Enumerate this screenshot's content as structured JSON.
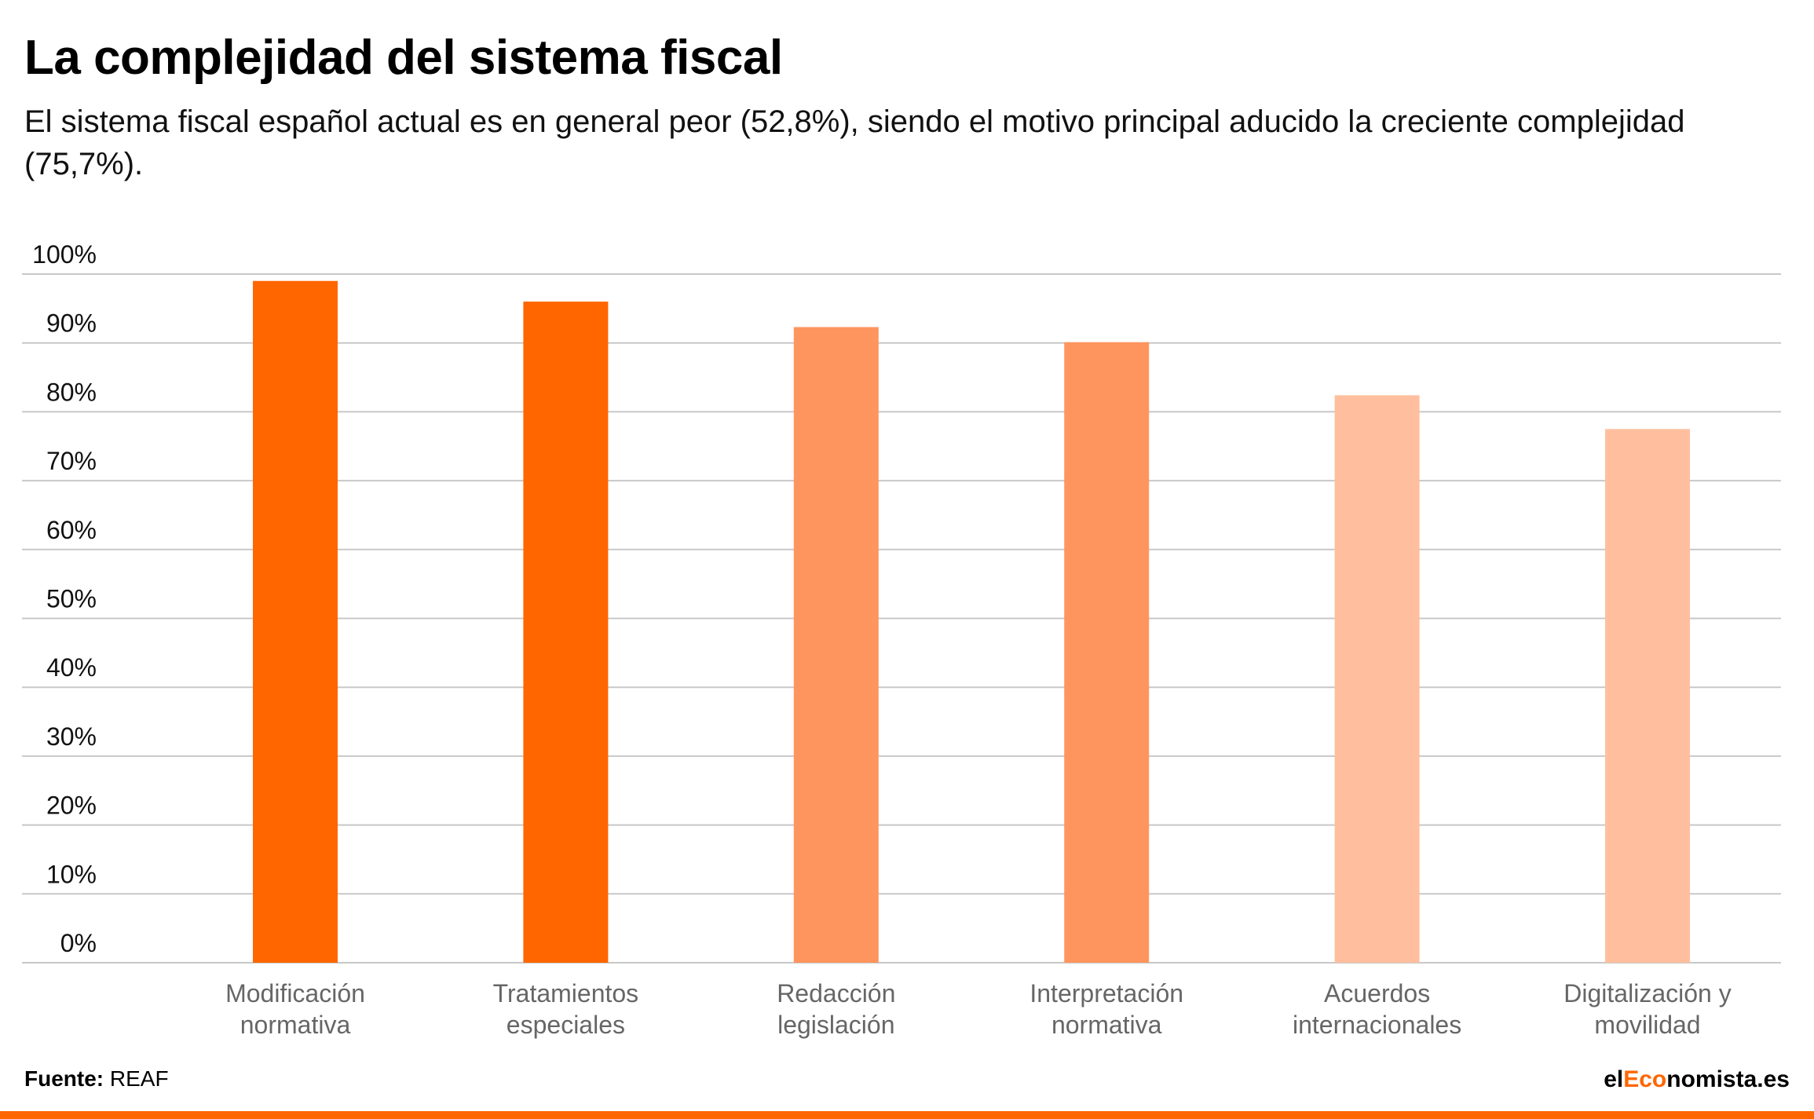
{
  "title": "La complejidad del sistema fiscal",
  "subtitle": "El sistema fiscal español actual es en general peor (52,8%), siendo el motivo principal aducido la creciente complejidad (75,7%).",
  "footer": {
    "source_label": "Fuente:",
    "source_value": "REAF"
  },
  "brand": {
    "part1": "el",
    "part2": "Eco",
    "part3": "nomista.es"
  },
  "colors": {
    "accent": "#ff6600",
    "mid": "#ff955e",
    "light": "#ffbf9e",
    "grid": "#c8c8c8",
    "tick": "#111111",
    "category": "#666666"
  },
  "chart_data": {
    "type": "bar",
    "categories": [
      [
        "Modificación",
        "normativa"
      ],
      [
        "Tratamientos",
        "especiales"
      ],
      [
        "Redacción",
        "legislación"
      ],
      [
        "Interpretación",
        "normativa"
      ],
      [
        "Acuerdos",
        "internacionales"
      ],
      [
        "Digitalización y",
        "movilidad"
      ]
    ],
    "values": [
      99,
      96,
      92.3,
      90.1,
      82.4,
      77.5
    ],
    "bar_colors": [
      "#ff6600",
      "#ff6600",
      "#ff955e",
      "#ff955e",
      "#ffbf9e",
      "#ffbf9e"
    ],
    "ylim": [
      0,
      100
    ],
    "yticks": [
      0,
      10,
      20,
      30,
      40,
      50,
      60,
      70,
      80,
      90,
      100
    ],
    "ytick_labels": [
      "0%",
      "10%",
      "20%",
      "30%",
      "40%",
      "50%",
      "60%",
      "70%",
      "80%",
      "90%",
      "100%"
    ],
    "grid": true,
    "legend": "none"
  }
}
